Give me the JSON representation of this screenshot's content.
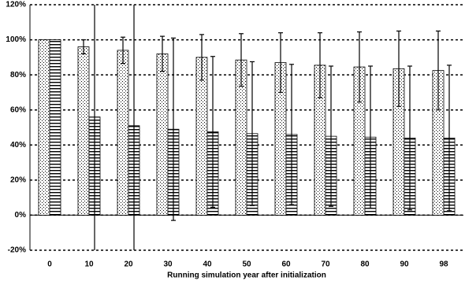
{
  "chart_data": {
    "type": "bar",
    "x_label": "Running simulation year after initialization",
    "categories": [
      "0",
      "10",
      "20",
      "30",
      "40",
      "50",
      "60",
      "70",
      "80",
      "90",
      "98"
    ],
    "series": [
      {
        "pattern": "dots",
        "color": "#000000",
        "values": [
          100,
          96,
          94,
          92,
          90,
          88.5,
          87,
          85.5,
          84.5,
          83.5,
          82.5
        ],
        "errors": [
          null,
          4,
          7.5,
          10,
          13,
          15,
          17,
          18.5,
          20,
          21.5,
          22.5
        ]
      },
      {
        "pattern": "hlines",
        "color": "#000000",
        "values": [
          100,
          56,
          51,
          49,
          47.5,
          46.5,
          46,
          45,
          44.5,
          44,
          44
        ],
        "errors": [
          null,
          80,
          75,
          52,
          43,
          41,
          40,
          40,
          40.5,
          41,
          41.5
        ]
      }
    ],
    "ylim": [
      -20,
      120
    ],
    "yticks": [
      {
        "value": -20,
        "label": "-20%"
      },
      {
        "value": 0,
        "label": "0%"
      },
      {
        "value": 20,
        "label": "20%"
      },
      {
        "value": 40,
        "label": "40%"
      },
      {
        "value": 60,
        "label": "60%"
      },
      {
        "value": 80,
        "label": "80%"
      },
      {
        "value": 100,
        "label": "100%"
      },
      {
        "value": 120,
        "label": "120%"
      }
    ],
    "grid": true
  }
}
